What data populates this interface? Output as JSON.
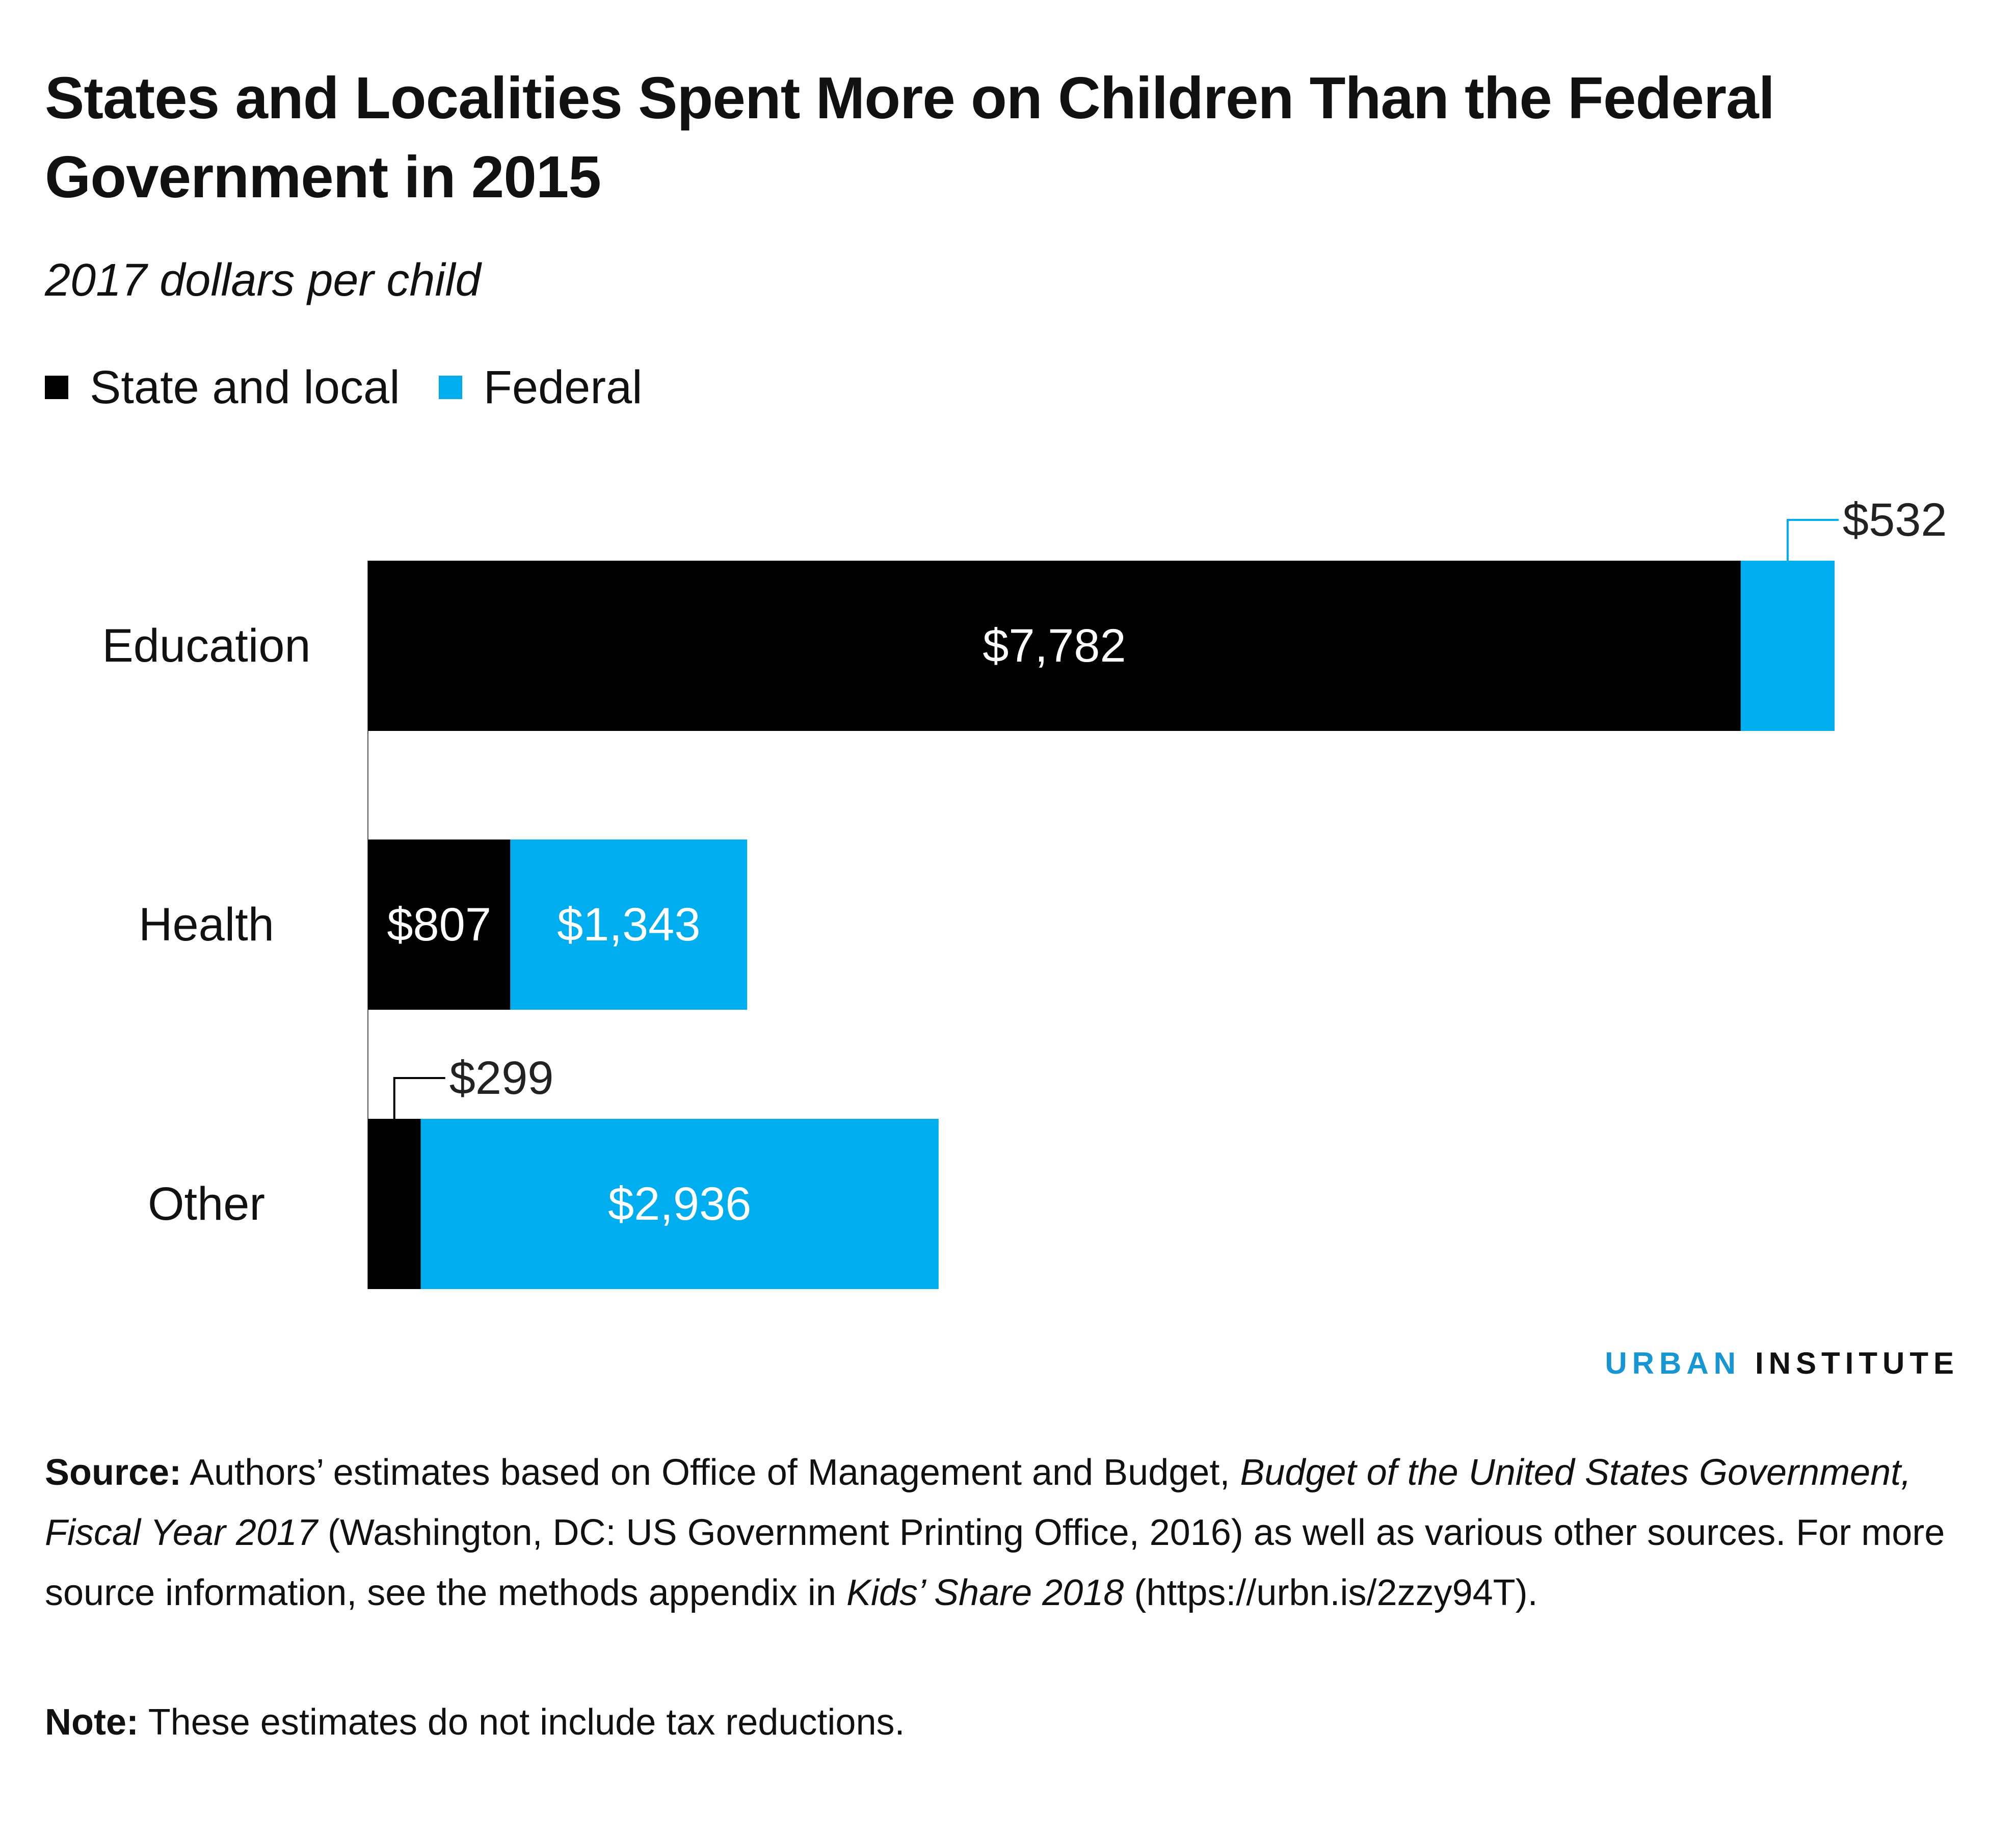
{
  "title": "States and Localities Spent More on Children Than the Federal Government in 2015",
  "subtitle": "2017 dollars per child",
  "legend": [
    {
      "label": "State and local",
      "color": "#000000"
    },
    {
      "label": "Federal",
      "color": "#00aeef"
    }
  ],
  "brand": {
    "part1": "URBAN",
    "part2": "INSTITUTE",
    "color1": "#1696d2",
    "color2": "#111111"
  },
  "source": {
    "label": "Source:",
    "text1": "Authors’ estimates based on Office of Management and Budget, ",
    "italic1": "Budget of the United States Government, Fiscal Year 2017",
    "text2": " (Washington, DC: US Government Printing Office, 2016) as well as various other sources. For more source information, see the methods appendix in ",
    "italic2": "Kids’ Share 2018",
    "text3": " (https://urbn.is/2zzy94T)."
  },
  "note": {
    "label": "Note:",
    "text": "These estimates do not include tax reductions."
  },
  "chart_data": {
    "type": "bar",
    "orientation": "horizontal",
    "stacked": true,
    "title": "States and Localities Spent More on Children Than the Federal Government in 2015",
    "subtitle": "2017 dollars per child",
    "categories": [
      "Education",
      "Health",
      "Other"
    ],
    "series": [
      {
        "name": "State and local",
        "color": "#000000",
        "values": [
          7782,
          807,
          299
        ],
        "labels": [
          "$7,782",
          "$807",
          "$299"
        ]
      },
      {
        "name": "Federal",
        "color": "#00aeef",
        "values": [
          532,
          1343,
          2936
        ],
        "labels": [
          "$532",
          "$1,343",
          "$2,936"
        ]
      }
    ],
    "xlim": [
      0,
      8314
    ],
    "grid": false,
    "legend_position": "top-left",
    "xlabel": "",
    "ylabel": ""
  }
}
